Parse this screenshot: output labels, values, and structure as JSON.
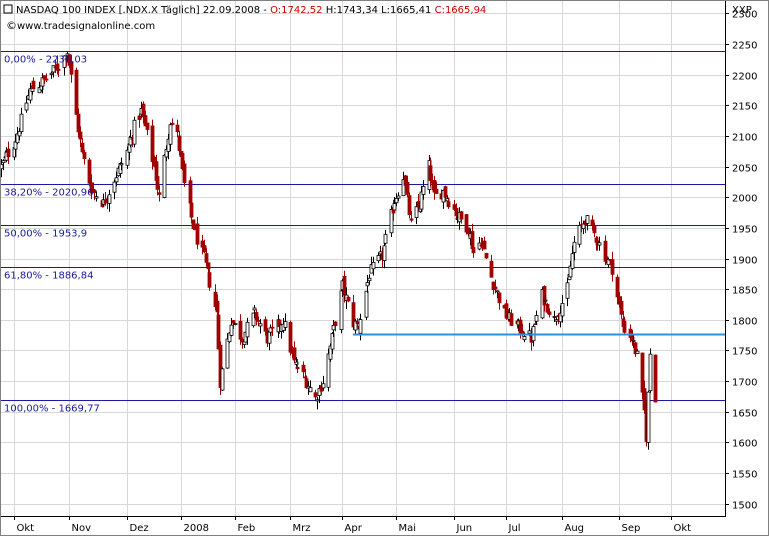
{
  "header": {
    "title_main": "NASDAQ 100 INDEX [.NDX.X  Täglich] 22.09.2008 - ",
    "open": "O:1742,52",
    "hl": " H:1743,34 L:1665,41 ",
    "close": "C:1665,94",
    "watermark": "www.tradesignalonline.com",
    "symbol": "XXP"
  },
  "colors": {
    "up": "#000000",
    "down": "#a00000",
    "fib": "#1a1aa0",
    "support": "#2f8fd8",
    "red_text": "#cc0000"
  },
  "chart_data": {
    "type": "candlestick",
    "title": "NASDAQ 100 INDEX [.NDX.X  Täglich] 22.09.2008",
    "x_range": [
      "2007-09-24",
      "2008-10-31"
    ],
    "x_ticks": [
      {
        "label": "Okt",
        "date": "2007-10-01"
      },
      {
        "label": "Nov",
        "date": "2007-11-01"
      },
      {
        "label": "Dez",
        "date": "2007-12-03"
      },
      {
        "label": "2008",
        "date": "2008-01-02"
      },
      {
        "label": "Feb",
        "date": "2008-02-01"
      },
      {
        "label": "Mrz",
        "date": "2008-03-03"
      },
      {
        "label": "Apr",
        "date": "2008-04-01"
      },
      {
        "label": "Mai",
        "date": "2008-05-01"
      },
      {
        "label": "Jun",
        "date": "2008-06-02"
      },
      {
        "label": "Jul",
        "date": "2008-07-01"
      },
      {
        "label": "Aug",
        "date": "2008-08-01"
      },
      {
        "label": "Sep",
        "date": "2008-09-02"
      },
      {
        "label": "Okt",
        "date": "2008-10-01"
      }
    ],
    "ylim": [
      1480,
      2320
    ],
    "y_ticks": [
      1500,
      1550,
      1600,
      1650,
      1700,
      1750,
      1800,
      1850,
      1900,
      1950,
      2000,
      2050,
      2100,
      2150,
      2200,
      2250,
      2300
    ],
    "fib_levels": [
      {
        "label": "0,00% - 2238,03",
        "value": 2238.03
      },
      {
        "label": "38,20% - 2020,96",
        "value": 2020.96
      },
      {
        "label": "50,00% - 1953,9",
        "value": 1953.9
      },
      {
        "label": "61,80% - 1886,84",
        "value": 1886.84
      },
      {
        "label": "100,00% - 1669,77",
        "value": 1669.77
      }
    ],
    "support_line": {
      "value": 1777,
      "from": "2008-04-07",
      "to": "2008-10-31"
    },
    "keypoints": [
      [
        "2007-09-24",
        2050
      ],
      [
        "2007-10-02",
        2095
      ],
      [
        "2007-10-10",
        2175
      ],
      [
        "2007-10-18",
        2190
      ],
      [
        "2007-10-26",
        2215
      ],
      [
        "2007-10-31",
        2238
      ],
      [
        "2007-11-08",
        2070
      ],
      [
        "2007-11-13",
        2015
      ],
      [
        "2007-11-20",
        1990
      ],
      [
        "2007-11-26",
        2030
      ],
      [
        "2007-12-03",
        2075
      ],
      [
        "2007-12-07",
        2115
      ],
      [
        "2007-12-11",
        2140
      ],
      [
        "2007-12-18",
        2050
      ],
      [
        "2007-12-21",
        2000
      ],
      [
        "2007-12-27",
        2125
      ],
      [
        "2007-12-31",
        2100
      ],
      [
        "2008-01-04",
        2020
      ],
      [
        "2008-01-10",
        1940
      ],
      [
        "2008-01-15",
        1900
      ],
      [
        "2008-01-22",
        1810
      ],
      [
        "2008-01-24",
        1700
      ],
      [
        "2008-01-30",
        1800
      ],
      [
        "2008-02-05",
        1770
      ],
      [
        "2008-02-12",
        1810
      ],
      [
        "2008-02-19",
        1770
      ],
      [
        "2008-02-28",
        1800
      ],
      [
        "2008-03-05",
        1730
      ],
      [
        "2008-03-12",
        1700
      ],
      [
        "2008-03-17",
        1672
      ],
      [
        "2008-03-21",
        1700
      ],
      [
        "2008-03-26",
        1770
      ],
      [
        "2008-04-01",
        1855
      ],
      [
        "2008-04-07",
        1795
      ],
      [
        "2008-04-10",
        1790
      ],
      [
        "2008-04-16",
        1875
      ],
      [
        "2008-04-23",
        1905
      ],
      [
        "2008-04-30",
        1995
      ],
      [
        "2008-05-05",
        2035
      ],
      [
        "2008-05-09",
        1955
      ],
      [
        "2008-05-14",
        1990
      ],
      [
        "2008-05-19",
        2050
      ],
      [
        "2008-05-22",
        2000
      ],
      [
        "2008-05-27",
        2010
      ],
      [
        "2008-06-04",
        1970
      ],
      [
        "2008-06-10",
        1950
      ],
      [
        "2008-06-13",
        1910
      ],
      [
        "2008-06-17",
        1930
      ],
      [
        "2008-06-24",
        1860
      ],
      [
        "2008-06-30",
        1810
      ],
      [
        "2008-07-07",
        1790
      ],
      [
        "2008-07-15",
        1770
      ],
      [
        "2008-07-21",
        1840
      ],
      [
        "2008-07-28",
        1800
      ],
      [
        "2008-08-04",
        1850
      ],
      [
        "2008-08-08",
        1925
      ],
      [
        "2008-08-14",
        1965
      ],
      [
        "2008-08-20",
        1935
      ],
      [
        "2008-08-25",
        1905
      ],
      [
        "2008-08-29",
        1885
      ],
      [
        "2008-09-04",
        1790
      ],
      [
        "2008-09-09",
        1770
      ],
      [
        "2008-09-12",
        1740
      ],
      [
        "2008-09-16",
        1650
      ],
      [
        "2008-09-17",
        1610
      ],
      [
        "2008-09-19",
        1745
      ],
      [
        "2008-09-22",
        1666
      ]
    ]
  }
}
